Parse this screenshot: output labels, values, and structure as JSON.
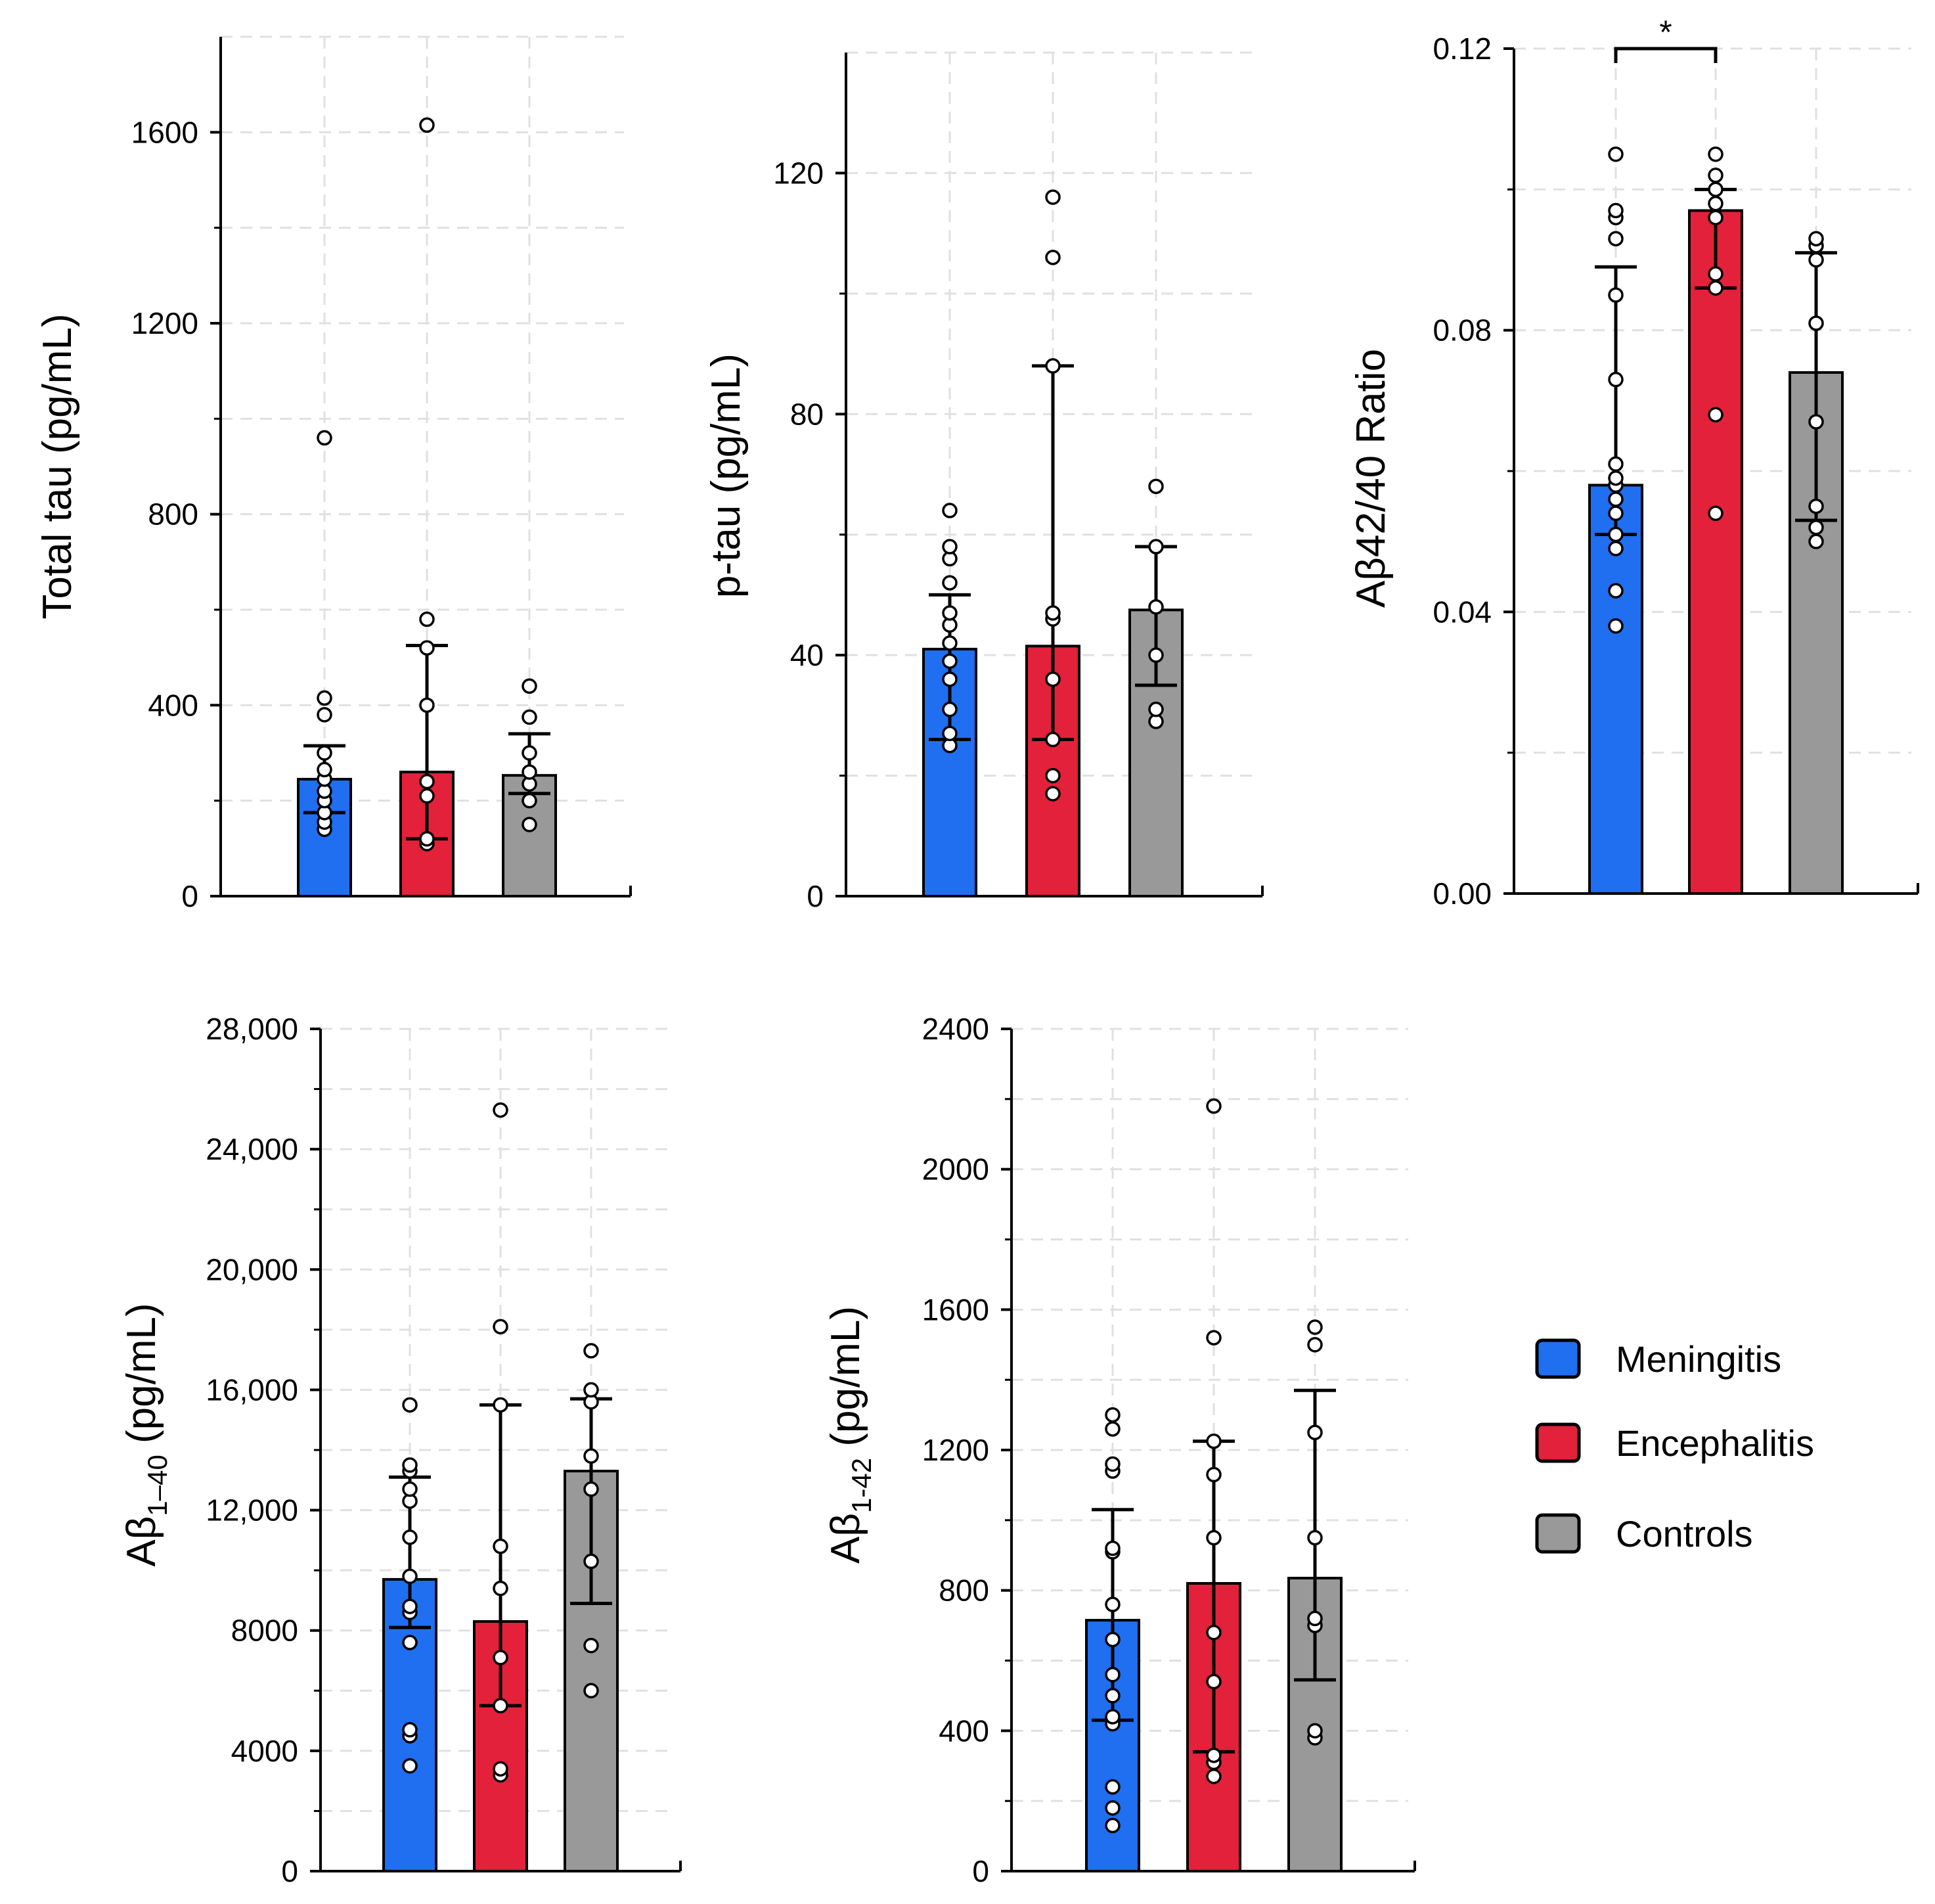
{
  "colors": {
    "Meningitis": "#1f6ff0",
    "Encephalitis": "#e3213a",
    "Controls": "#999999"
  },
  "legend": {
    "items": [
      "Meningitis",
      "Encephalitis",
      "Controls"
    ]
  },
  "chart_data": [
    {
      "id": "total-tau",
      "type": "bar",
      "title": "",
      "ylabel": "Total tau (pg/mL)",
      "ylim": [
        0,
        1800
      ],
      "ticks": [
        0,
        400,
        800,
        1200,
        1600
      ],
      "tick_labels": [
        "0",
        "400",
        "800",
        "1200",
        "1600"
      ],
      "categories": [
        "Meningitis",
        "Encephalitis",
        "Controls"
      ],
      "values": [
        245,
        260,
        253
      ],
      "error": [
        [
          175,
          315
        ],
        [
          120,
          525
        ],
        [
          215,
          340
        ]
      ],
      "points": [
        [
          140,
          155,
          175,
          200,
          220,
          245,
          265,
          300,
          380,
          415,
          960
        ],
        [
          110,
          120,
          210,
          240,
          400,
          520,
          580,
          1615
        ],
        [
          150,
          200,
          235,
          260,
          300,
          375,
          440
        ]
      ]
    },
    {
      "id": "p-tau",
      "type": "bar",
      "title": "",
      "ylabel": "p-tau (pg/mL)",
      "ylim": [
        0,
        140
      ],
      "ticks": [
        0,
        40,
        80,
        120
      ],
      "tick_labels": [
        "0",
        "40",
        "80",
        "120"
      ],
      "categories": [
        "Meningitis",
        "Encephalitis",
        "Controls"
      ],
      "values": [
        41,
        41.5,
        47.5
      ],
      "error": [
        [
          26,
          50
        ],
        [
          26,
          88
        ],
        [
          35,
          58
        ]
      ],
      "points": [
        [
          25,
          27,
          31,
          36,
          39,
          42,
          45,
          47,
          52,
          56,
          58,
          64
        ],
        [
          17,
          20,
          26,
          36,
          46,
          47,
          88,
          106,
          116
        ],
        [
          29,
          31,
          40,
          48,
          58,
          68
        ]
      ]
    },
    {
      "id": "abeta-ratio",
      "type": "bar",
      "title": "",
      "ylabel": "Aβ42/40 Ratio",
      "ylim": [
        0,
        0.12
      ],
      "ticks": [
        0,
        0.04,
        0.08,
        0.12
      ],
      "tick_labels": [
        "0.00",
        "0.04",
        "0.08",
        "0.12"
      ],
      "categories": [
        "Meningitis",
        "Encephalitis",
        "Controls"
      ],
      "values": [
        0.058,
        0.097,
        0.074
      ],
      "error": [
        [
          0.051,
          0.089
        ],
        [
          0.086,
          0.1
        ],
        [
          0.053,
          0.091
        ]
      ],
      "points": [
        [
          0.038,
          0.043,
          0.049,
          0.051,
          0.054,
          0.056,
          0.058,
          0.059,
          0.061,
          0.073,
          0.085,
          0.093,
          0.096,
          0.097,
          0.105
        ],
        [
          0.054,
          0.068,
          0.086,
          0.088,
          0.096,
          0.098,
          0.1,
          0.102,
          0.105
        ],
        [
          0.05,
          0.052,
          0.055,
          0.067,
          0.081,
          0.09,
          0.092,
          0.093
        ]
      ],
      "significance": {
        "from": 0,
        "to": 1,
        "label": "*"
      }
    },
    {
      "id": "abeta-1-40",
      "type": "bar",
      "title": "",
      "ylabel": "Aβ1-40 (pg/mL)",
      "ylabel_parts": [
        "Aβ",
        "1–40",
        " (pg/mL)"
      ],
      "ylim": [
        0,
        28000
      ],
      "ticks": [
        0,
        4000,
        8000,
        12000,
        16000,
        20000,
        24000,
        28000
      ],
      "tick_labels": [
        "0",
        "4000",
        "8000",
        "12,000",
        "16,000",
        "20,000",
        "24,000",
        "28,000"
      ],
      "categories": [
        "Meningitis",
        "Encephalitis",
        "Controls"
      ],
      "values": [
        9700,
        8300,
        13300
      ],
      "error": [
        [
          8100,
          13100
        ],
        [
          5500,
          15500
        ],
        [
          8900,
          15700
        ]
      ],
      "points": [
        [
          3500,
          4500,
          4700,
          7600,
          8600,
          8800,
          9800,
          11100,
          12300,
          12700,
          13300,
          13500,
          15500
        ],
        [
          3200,
          3400,
          5500,
          7100,
          9400,
          10800,
          15500,
          18100,
          25300
        ],
        [
          6000,
          7500,
          10300,
          12700,
          13800,
          15600,
          16000,
          17300
        ]
      ]
    },
    {
      "id": "abeta-1-42",
      "type": "bar",
      "title": "",
      "ylabel": "Aβ1-42 (pg/mL)",
      "ylabel_parts": [
        "Aβ",
        "1-42",
        " (pg/mL)"
      ],
      "ylim": [
        0,
        2400
      ],
      "ticks": [
        0,
        400,
        800,
        1200,
        1600,
        2000,
        2400
      ],
      "tick_labels": [
        "0",
        "400",
        "800",
        "1200",
        "1600",
        "2000",
        "2400"
      ],
      "categories": [
        "Meningitis",
        "Encephalitis",
        "Controls"
      ],
      "values": [
        715,
        820,
        835
      ],
      "error": [
        [
          430,
          1030
        ],
        [
          340,
          1225
        ],
        [
          545,
          1370
        ]
      ],
      "points": [
        [
          130,
          180,
          240,
          420,
          440,
          500,
          560,
          660,
          760,
          910,
          920,
          1140,
          1160,
          1260,
          1300
        ],
        [
          270,
          310,
          330,
          540,
          680,
          950,
          1130,
          1225,
          1520,
          2180
        ],
        [
          380,
          400,
          700,
          720,
          950,
          1250,
          1500,
          1550
        ]
      ]
    }
  ]
}
